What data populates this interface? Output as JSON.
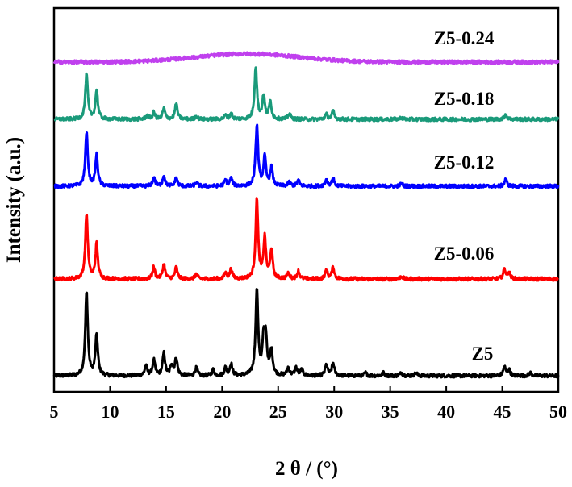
{
  "chart_data": {
    "type": "line",
    "title": "",
    "xlabel": "2 θ / (°)",
    "ylabel": "Intensity (a.u.)",
    "xlim": [
      5,
      50
    ],
    "xticks": [
      5,
      10,
      15,
      20,
      25,
      30,
      35,
      40,
      45,
      50
    ],
    "y_ticks_shown": false,
    "grid": false,
    "legend": "labels next to each curve",
    "series": [
      {
        "name": "Z5",
        "color": "#000000",
        "peaks": [
          [
            7.9,
            8.6
          ],
          [
            8.8,
            4.2
          ],
          [
            13.2,
            1.0
          ],
          [
            13.9,
            1.6
          ],
          [
            14.8,
            2.3
          ],
          [
            15.5,
            1.1
          ],
          [
            15.9,
            1.8
          ],
          [
            17.7,
            0.8
          ],
          [
            19.2,
            0.6
          ],
          [
            20.3,
            0.8
          ],
          [
            20.8,
            1.2
          ],
          [
            23.1,
            9.0
          ],
          [
            23.7,
            3.4
          ],
          [
            23.9,
            3.6
          ],
          [
            24.4,
            2.6
          ],
          [
            25.9,
            0.8
          ],
          [
            26.6,
            0.8
          ],
          [
            27.1,
            0.6
          ],
          [
            29.3,
            1.1
          ],
          [
            29.9,
            1.3
          ],
          [
            32.8,
            0.3
          ],
          [
            34.4,
            0.3
          ],
          [
            36.0,
            0.3
          ],
          [
            37.3,
            0.3
          ],
          [
            45.2,
            0.9
          ],
          [
            45.6,
            0.6
          ],
          [
            47.5,
            0.3
          ]
        ]
      },
      {
        "name": "Z5-0.06",
        "color": "#ff0000",
        "peaks": [
          [
            7.9,
            6.7
          ],
          [
            8.8,
            3.6
          ],
          [
            13.9,
            1.2
          ],
          [
            14.8,
            1.5
          ],
          [
            15.9,
            1.2
          ],
          [
            17.7,
            0.5
          ],
          [
            20.3,
            0.6
          ],
          [
            20.8,
            1.0
          ],
          [
            23.1,
            8.3
          ],
          [
            23.8,
            4.2
          ],
          [
            24.4,
            3.0
          ],
          [
            25.9,
            0.6
          ],
          [
            26.8,
            0.8
          ],
          [
            29.3,
            0.9
          ],
          [
            29.9,
            1.2
          ],
          [
            36.0,
            0.3
          ],
          [
            45.2,
            1.0
          ],
          [
            45.6,
            0.7
          ]
        ]
      },
      {
        "name": "Z5-0.12",
        "color": "#0000ff",
        "peaks": [
          [
            7.9,
            5.5
          ],
          [
            8.8,
            3.2
          ],
          [
            13.9,
            0.9
          ],
          [
            14.8,
            1.1
          ],
          [
            15.9,
            0.9
          ],
          [
            17.7,
            0.4
          ],
          [
            20.3,
            0.6
          ],
          [
            20.8,
            0.8
          ],
          [
            23.1,
            6.3
          ],
          [
            23.8,
            3.0
          ],
          [
            24.4,
            1.9
          ],
          [
            26.0,
            0.4
          ],
          [
            26.8,
            0.6
          ],
          [
            29.3,
            0.7
          ],
          [
            29.9,
            0.8
          ],
          [
            36.0,
            0.3
          ],
          [
            45.3,
            0.7
          ]
        ]
      },
      {
        "name": "Z5-0.18",
        "color": "#1a9a7a",
        "peaks": [
          [
            7.9,
            4.6
          ],
          [
            8.8,
            3.0
          ],
          [
            13.3,
            0.4
          ],
          [
            13.9,
            0.7
          ],
          [
            14.8,
            1.1
          ],
          [
            15.9,
            1.6
          ],
          [
            17.7,
            0.3
          ],
          [
            20.3,
            0.4
          ],
          [
            20.8,
            0.6
          ],
          [
            23.0,
            5.4
          ],
          [
            23.7,
            2.4
          ],
          [
            24.3,
            1.8
          ],
          [
            26.0,
            0.6
          ],
          [
            29.3,
            0.5
          ],
          [
            29.9,
            0.8
          ],
          [
            36.0,
            0.2
          ],
          [
            45.3,
            0.5
          ]
        ]
      },
      {
        "name": "Z5-0.24",
        "color": "#c040ee",
        "peaks": [],
        "amorphous_hump": {
          "center": 22.3,
          "height": 0.85
        }
      }
    ]
  }
}
